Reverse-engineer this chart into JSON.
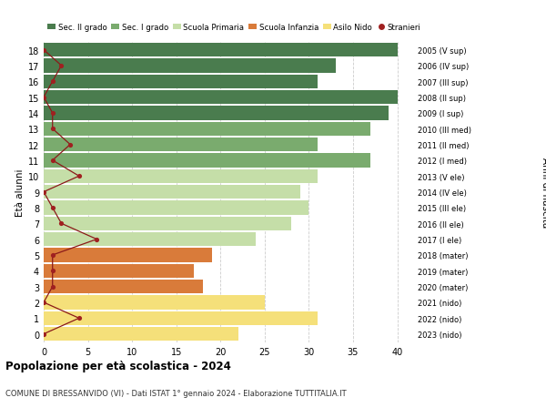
{
  "ages": [
    18,
    17,
    16,
    15,
    14,
    13,
    12,
    11,
    10,
    9,
    8,
    7,
    6,
    5,
    4,
    3,
    2,
    1,
    0
  ],
  "right_labels": [
    "2005 (V sup)",
    "2006 (IV sup)",
    "2007 (III sup)",
    "2008 (II sup)",
    "2009 (I sup)",
    "2010 (III med)",
    "2011 (II med)",
    "2012 (I med)",
    "2013 (V ele)",
    "2014 (IV ele)",
    "2015 (III ele)",
    "2016 (II ele)",
    "2017 (I ele)",
    "2018 (mater)",
    "2019 (mater)",
    "2020 (mater)",
    "2021 (nido)",
    "2022 (nido)",
    "2023 (nido)"
  ],
  "bar_values": [
    40,
    33,
    31,
    40,
    39,
    37,
    31,
    37,
    31,
    29,
    30,
    28,
    24,
    19,
    17,
    18,
    25,
    31,
    22
  ],
  "bar_colors": [
    "#4a7c4e",
    "#4a7c4e",
    "#4a7c4e",
    "#4a7c4e",
    "#4a7c4e",
    "#7aab6e",
    "#7aab6e",
    "#7aab6e",
    "#c5dea8",
    "#c5dea8",
    "#c5dea8",
    "#c5dea8",
    "#c5dea8",
    "#d97b3a",
    "#d97b3a",
    "#d97b3a",
    "#f5e07a",
    "#f5e07a",
    "#f5e07a"
  ],
  "stranieri_values": [
    0,
    2,
    1,
    0,
    1,
    1,
    3,
    1,
    4,
    0,
    1,
    2,
    6,
    1,
    1,
    1,
    0,
    4,
    0
  ],
  "legend_labels": [
    "Sec. II grado",
    "Sec. I grado",
    "Scuola Primaria",
    "Scuola Infanzia",
    "Asilo Nido",
    "Stranieri"
  ],
  "legend_colors": [
    "#4a7c4e",
    "#7aab6e",
    "#c5dea8",
    "#d97b3a",
    "#f5e07a",
    "#a02020"
  ],
  "title": "Popolazione per età scolastica - 2024",
  "subtitle": "COMUNE DI BRESSANVIDO (VI) - Dati ISTAT 1° gennaio 2024 - Elaborazione TUTTITALIA.IT",
  "ylabel_left": "Età alunni",
  "ylabel_right": "Anni di nascita",
  "xlim": [
    0,
    42
  ],
  "xticks": [
    0,
    5,
    10,
    15,
    20,
    25,
    30,
    35,
    40
  ],
  "bg_color": "#ffffff",
  "grid_color": "#cccccc",
  "bar_height": 0.88
}
